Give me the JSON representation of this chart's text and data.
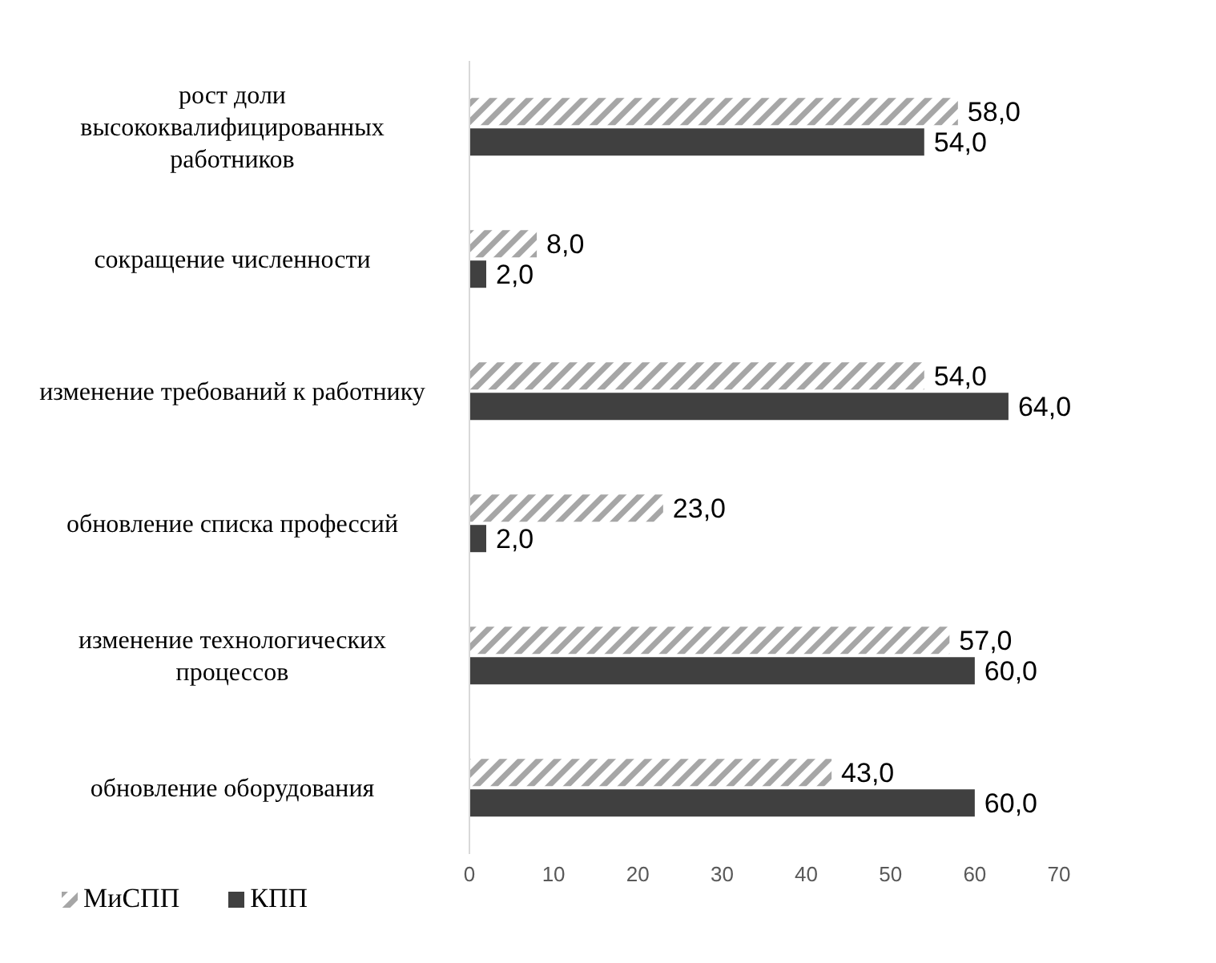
{
  "chart_data": {
    "type": "bar",
    "orientation": "horizontal",
    "categories": [
      "рост доли высококвалифицированных работников",
      "сокращение численности",
      "изменение требований к работнику",
      "обновление списка профессий",
      "изменение технологических процессов",
      "обновление оборудования"
    ],
    "series": [
      {
        "name": "МиСПП",
        "color": "#a6a6a6",
        "values": [
          58,
          8,
          54,
          23,
          57,
          43
        ],
        "value_labels": [
          "58,0",
          "8,0",
          "54,0",
          "23,0",
          "57,0",
          "43,0"
        ]
      },
      {
        "name": "КПП",
        "color": "#404040",
        "values": [
          54,
          2,
          64,
          2,
          60,
          60
        ],
        "value_labels": [
          "54,0",
          "2,0",
          "64,0",
          "2,0",
          "60,0",
          "60,0"
        ]
      }
    ],
    "xlim": [
      0,
      70
    ],
    "xticks": [
      0,
      10,
      20,
      30,
      40,
      50,
      60,
      70
    ],
    "grid": false,
    "legend": "bottom left"
  }
}
